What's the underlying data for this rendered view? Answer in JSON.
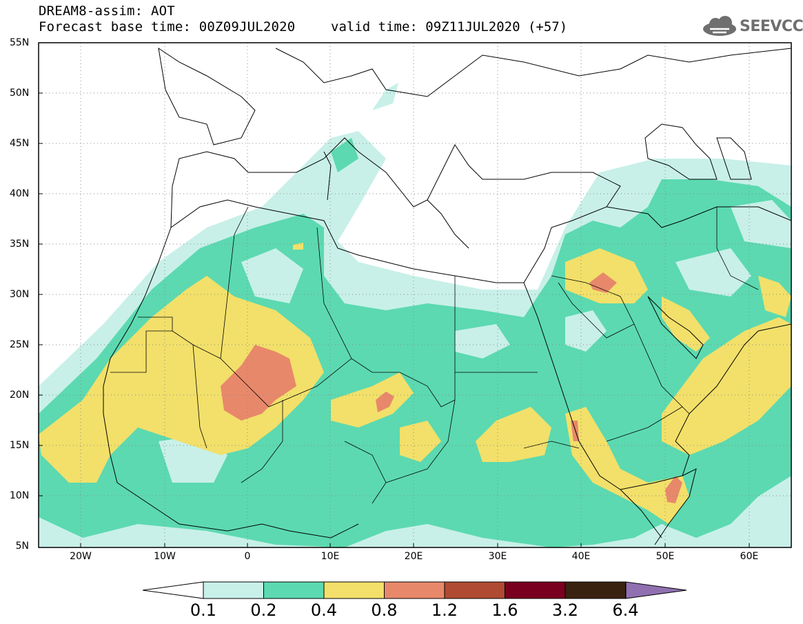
{
  "header": {
    "line1": "DREAM8-assim: AOT",
    "line2": "Forecast base time: 00Z09JUL2020",
    "valid": "valid time: 09Z11JUL2020 (+57)",
    "logo": "SEEVCCC"
  },
  "axes": {
    "lat_labels": [
      "55N",
      "50N",
      "45N",
      "40N",
      "35N",
      "30N",
      "25N",
      "20N",
      "15N",
      "10N",
      "5N"
    ],
    "lon_labels": [
      "20W",
      "10W",
      "0",
      "10E",
      "20E",
      "30E",
      "40E",
      "50E",
      "60E"
    ]
  },
  "colorbar": {
    "levels": [
      "0.1",
      "0.2",
      "0.4",
      "0.8",
      "1.2",
      "1.6",
      "3.2",
      "6.4"
    ],
    "colors": [
      "#c8f0e8",
      "#5cd9b0",
      "#f2e06a",
      "#e8886a",
      "#b04a32",
      "#7a0020",
      "#3a2210",
      "#9070b0"
    ]
  },
  "map_colors": {
    "light_teal": "#c8f0e8",
    "green": "#5cd9b0",
    "yellow": "#f2e06a",
    "orange": "#e8886a"
  }
}
